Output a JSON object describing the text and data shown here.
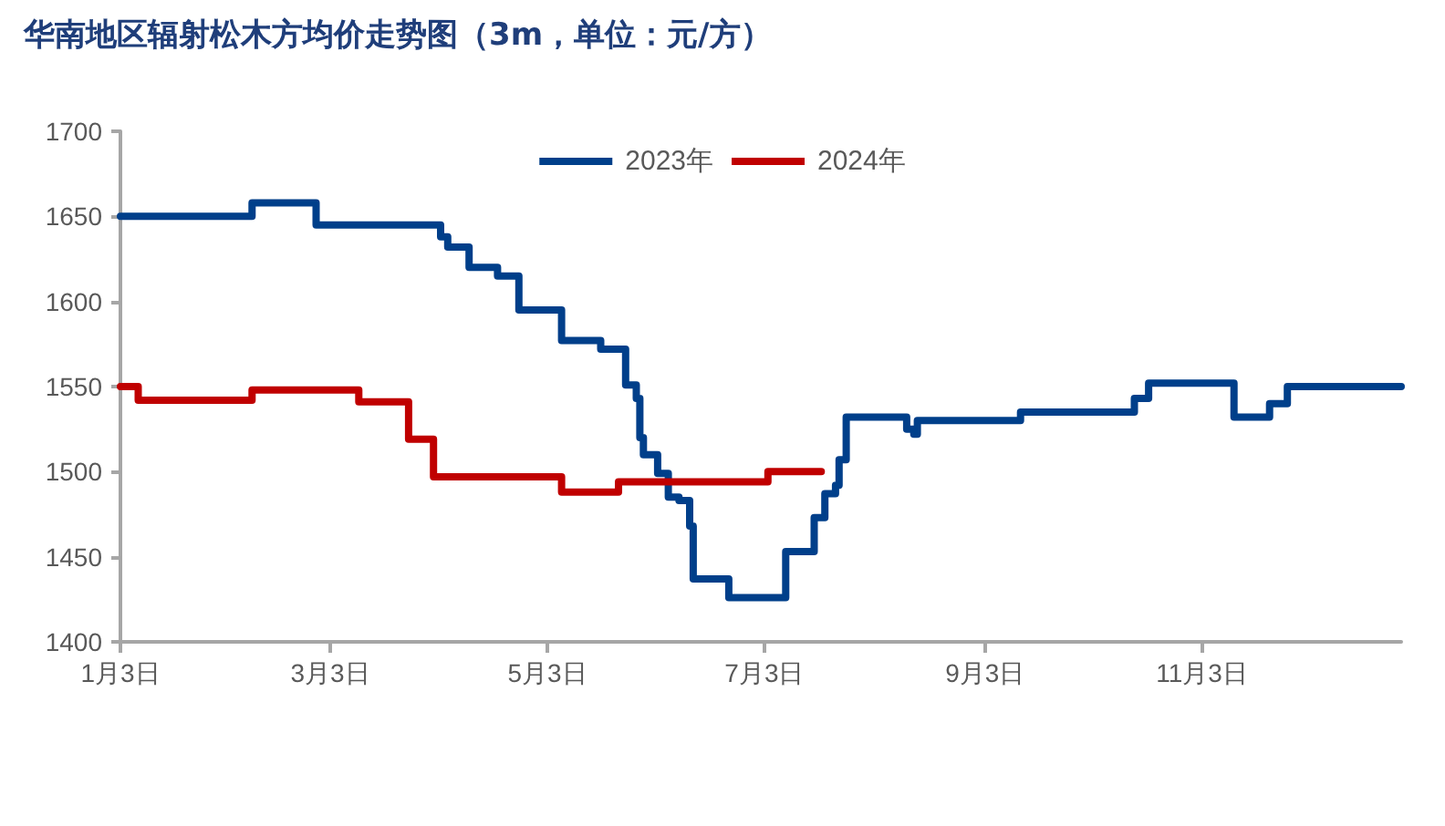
{
  "chart_data": {
    "type": "step",
    "title": "华南地区辐射松木方均价走势图（3m，单位：元/方）",
    "xlim": [
      "--01-03",
      "--12-29"
    ],
    "xticks": [
      {
        "value": "--01-03",
        "label": "1月3日"
      },
      {
        "value": "--03-03",
        "label": "3月3日"
      },
      {
        "value": "--05-03",
        "label": "5月3日"
      },
      {
        "value": "--07-03",
        "label": "7月3日"
      },
      {
        "value": "--09-03",
        "label": "9月3日"
      },
      {
        "value": "--11-03",
        "label": "11月3日"
      }
    ],
    "ylim": [
      1400,
      1700
    ],
    "yticks": [
      1400,
      1450,
      1500,
      1550,
      1600,
      1650,
      1700
    ],
    "grid": false,
    "legend": "top",
    "marker": "none",
    "line_style": "solid",
    "series": [
      {
        "name": "2023年",
        "color": "#003f8a",
        "x": [
          "--01-03",
          "--02-07",
          "--02-09",
          "--02-24",
          "--02-27",
          "--03-31",
          "--04-03",
          "--04-05",
          "--04-10",
          "--04-11",
          "--04-17",
          "--04-19",
          "--04-24",
          "--04-25",
          "--05-04",
          "--05-07",
          "--05-17",
          "--05-18",
          "--05-23",
          "--05-25",
          "--05-28",
          "--05-29",
          "--05-30",
          "--06-03",
          "--06-06",
          "--06-09",
          "--06-12",
          "--06-13",
          "--06-20",
          "--06-23",
          "--07-07",
          "--07-09",
          "--07-14",
          "--07-17",
          "--07-20",
          "--07-23",
          "--07-24",
          "--07-26",
          "--08-08",
          "--08-12",
          "--08-14",
          "--08-15",
          "--09-12",
          "--09-13",
          "--10-12",
          "--10-15",
          "--10-19",
          "--11-09",
          "--11-12",
          "--11-20",
          "--11-22",
          "--11-26",
          "--11-27",
          "--12-29"
        ],
        "values": [
          1650,
          1650,
          1658,
          1658,
          1645,
          1645,
          1638,
          1632,
          1632,
          1620,
          1620,
          1615,
          1615,
          1595,
          1595,
          1577,
          1577,
          1572,
          1572,
          1551,
          1543,
          1520,
          1510,
          1499,
          1485,
          1483,
          1468,
          1437,
          1437,
          1426,
          1426,
          1453,
          1453,
          1473,
          1487,
          1492,
          1507,
          1532,
          1532,
          1525,
          1522,
          1530,
          1530,
          1535,
          1535,
          1543,
          1552,
          1552,
          1532,
          1532,
          1540,
          1540,
          1550,
          1550
        ]
      },
      {
        "name": "2024年",
        "color": "#c00000",
        "x": [
          "--01-03",
          "--01-05",
          "--01-08",
          "--02-08",
          "--02-09",
          "--03-08",
          "--03-11",
          "--03-23",
          "--03-25",
          "--03-29",
          "--04-01",
          "--05-04",
          "--05-07",
          "--05-22",
          "--05-23",
          "--07-03",
          "--07-04",
          "--07-19"
        ],
        "values": [
          1550,
          1550,
          1542,
          1542,
          1548,
          1548,
          1541,
          1541,
          1519,
          1519,
          1497,
          1497,
          1488,
          1488,
          1494,
          1494,
          1500,
          1500
        ]
      }
    ]
  }
}
